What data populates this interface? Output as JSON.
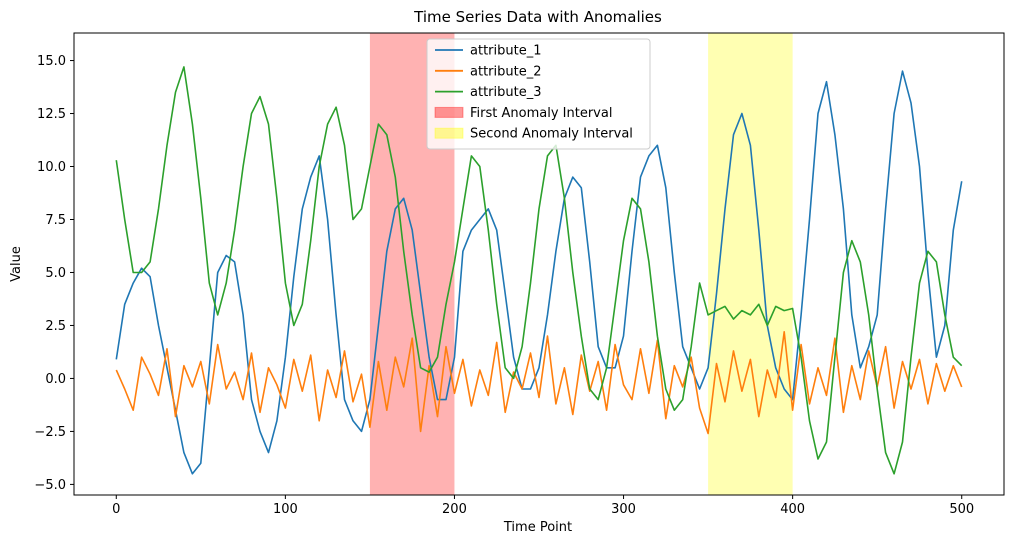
{
  "chart_data": {
    "type": "line",
    "title": "Time Series Data with Anomalies",
    "xlabel": "Time Point",
    "ylabel": "Value",
    "xlim": [
      -25,
      525
    ],
    "ylim": [
      -5.5,
      16.3
    ],
    "xticks": [
      0,
      100,
      200,
      300,
      400,
      500
    ],
    "yticks": [
      -5.0,
      -2.5,
      0.0,
      2.5,
      5.0,
      7.5,
      10.0,
      12.5,
      15.0
    ],
    "ytick_labels": [
      "−5.0",
      "−2.5",
      "0.0",
      "2.5",
      "5.0",
      "7.5",
      "10.0",
      "12.5",
      "15.0"
    ],
    "grid": false,
    "legend": "top-center",
    "spans": [
      {
        "name": "First Anomaly Interval",
        "x0": 150,
        "x1": 200,
        "color": "#ff0000",
        "alpha": 0.3
      },
      {
        "name": "Second Anomaly Interval",
        "x0": 350,
        "x1": 400,
        "color": "#ffff00",
        "alpha": 0.3
      }
    ],
    "series": [
      {
        "name": "attribute_1",
        "color": "#1f77b4",
        "x": [
          0,
          5,
          10,
          15,
          20,
          25,
          30,
          35,
          40,
          45,
          50,
          55,
          60,
          65,
          70,
          75,
          80,
          85,
          90,
          95,
          100,
          105,
          110,
          115,
          120,
          125,
          130,
          135,
          140,
          145,
          150,
          155,
          160,
          165,
          170,
          175,
          180,
          185,
          190,
          195,
          200,
          205,
          210,
          215,
          220,
          225,
          230,
          235,
          240,
          245,
          250,
          255,
          260,
          265,
          270,
          275,
          280,
          285,
          290,
          295,
          300,
          305,
          310,
          315,
          320,
          325,
          330,
          335,
          340,
          345,
          350,
          355,
          360,
          365,
          370,
          375,
          380,
          385,
          390,
          395,
          400,
          405,
          410,
          415,
          420,
          425,
          430,
          435,
          440,
          445,
          450,
          455,
          460,
          465,
          470,
          475,
          480,
          485,
          490,
          495,
          500
        ],
        "values": [
          0.9,
          3.5,
          4.5,
          5.2,
          4.8,
          2.5,
          0.5,
          -1.5,
          -3.5,
          -4.5,
          -4.0,
          0.5,
          5.0,
          5.8,
          5.5,
          3.0,
          -1.0,
          -2.5,
          -3.5,
          -2.0,
          1.0,
          4.8,
          8.0,
          9.5,
          10.5,
          7.5,
          3.0,
          -1.0,
          -2.0,
          -2.5,
          -1.0,
          2.5,
          6.0,
          8.0,
          8.5,
          7.0,
          4.0,
          1.0,
          -1.0,
          -1.0,
          1.0,
          6.0,
          7.0,
          7.5,
          8.0,
          7.0,
          4.0,
          1.0,
          -0.5,
          -0.5,
          0.5,
          3.0,
          6.0,
          8.5,
          9.5,
          9.0,
          5.5,
          1.5,
          0.5,
          0.5,
          2.0,
          6.0,
          9.5,
          10.5,
          11.0,
          9.0,
          5.0,
          1.5,
          0.5,
          -0.5,
          0.5,
          4.0,
          8.0,
          11.5,
          12.5,
          11.0,
          7.0,
          2.5,
          0.5,
          -0.5,
          -1.0,
          3.0,
          7.5,
          12.5,
          14.0,
          11.5,
          8.0,
          3.0,
          0.5,
          1.5,
          3.0,
          8.0,
          12.5,
          14.5,
          13.0,
          10.0,
          5.0,
          1.0,
          2.5,
          7.0,
          9.3
        ]
      },
      {
        "name": "attribute_2",
        "color": "#ff7f0e",
        "x": [
          0,
          5,
          10,
          15,
          20,
          25,
          30,
          35,
          40,
          45,
          50,
          55,
          60,
          65,
          70,
          75,
          80,
          85,
          90,
          95,
          100,
          105,
          110,
          115,
          120,
          125,
          130,
          135,
          140,
          145,
          150,
          155,
          160,
          165,
          170,
          175,
          180,
          185,
          190,
          195,
          200,
          205,
          210,
          215,
          220,
          225,
          230,
          235,
          240,
          245,
          250,
          255,
          260,
          265,
          270,
          275,
          280,
          285,
          290,
          295,
          300,
          305,
          310,
          315,
          320,
          325,
          330,
          335,
          340,
          345,
          350,
          355,
          360,
          365,
          370,
          375,
          380,
          385,
          390,
          395,
          400,
          405,
          410,
          415,
          420,
          425,
          430,
          435,
          440,
          445,
          450,
          455,
          460,
          465,
          470,
          475,
          480,
          485,
          490,
          495,
          500
        ],
        "values": [
          0.4,
          -0.5,
          -1.5,
          1.0,
          0.2,
          -0.8,
          1.4,
          -1.8,
          0.6,
          -0.4,
          0.8,
          -1.2,
          1.6,
          -0.5,
          0.3,
          -1.0,
          1.2,
          -1.6,
          0.5,
          -0.3,
          -1.4,
          0.9,
          -0.6,
          1.1,
          -2.0,
          0.4,
          -0.9,
          1.3,
          -1.1,
          0.2,
          -2.3,
          0.8,
          -1.5,
          1.0,
          -0.4,
          1.9,
          -2.5,
          0.6,
          -1.8,
          1.5,
          -0.7,
          0.9,
          -1.3,
          0.4,
          -0.8,
          1.7,
          -1.6,
          0.3,
          -0.5,
          1.2,
          -0.9,
          2.0,
          -1.2,
          0.5,
          -1.7,
          1.1,
          -0.6,
          0.8,
          -1.5,
          1.6,
          -0.3,
          -1.0,
          1.4,
          -0.7,
          1.8,
          -1.9,
          0.6,
          -0.4,
          1.0,
          -1.4,
          -2.6,
          0.7,
          -1.1,
          1.3,
          -0.6,
          0.9,
          -1.8,
          0.4,
          -0.9,
          2.2,
          -1.5,
          1.6,
          -1.2,
          0.5,
          -0.8,
          1.9,
          -1.6,
          0.6,
          -1.0,
          1.3,
          -0.4,
          1.5,
          -1.4,
          0.8,
          -0.5,
          0.9,
          -1.2,
          0.7,
          -0.6,
          0.6,
          -0.4
        ]
      },
      {
        "name": "attribute_3",
        "color": "#2ca02c",
        "x": [
          0,
          5,
          10,
          15,
          20,
          25,
          30,
          35,
          40,
          45,
          50,
          55,
          60,
          65,
          70,
          75,
          80,
          85,
          90,
          95,
          100,
          105,
          110,
          115,
          120,
          125,
          130,
          135,
          140,
          145,
          150,
          155,
          160,
          165,
          170,
          175,
          180,
          185,
          190,
          195,
          200,
          205,
          210,
          215,
          220,
          225,
          230,
          235,
          240,
          245,
          250,
          255,
          260,
          265,
          270,
          275,
          280,
          285,
          290,
          295,
          300,
          305,
          310,
          315,
          320,
          325,
          330,
          335,
          340,
          345,
          350,
          355,
          360,
          365,
          370,
          375,
          380,
          385,
          390,
          395,
          400,
          405,
          410,
          415,
          420,
          425,
          430,
          435,
          440,
          445,
          450,
          455,
          460,
          465,
          470,
          475,
          480,
          485,
          490,
          495,
          500
        ],
        "values": [
          10.3,
          7.5,
          5.0,
          5.0,
          5.5,
          8.0,
          11.0,
          13.5,
          14.7,
          12.0,
          8.5,
          4.5,
          3.0,
          4.5,
          7.0,
          10.0,
          12.5,
          13.3,
          12.0,
          8.5,
          4.5,
          2.5,
          3.5,
          6.5,
          10.0,
          12.0,
          12.8,
          11.0,
          7.5,
          8.0,
          10.0,
          12.0,
          11.5,
          9.5,
          6.0,
          3.0,
          0.5,
          0.3,
          1.0,
          3.5,
          5.5,
          8.0,
          10.5,
          10.0,
          7.0,
          3.5,
          0.5,
          0.0,
          1.5,
          4.5,
          8.0,
          10.5,
          11.0,
          8.5,
          5.0,
          2.0,
          -0.5,
          -1.0,
          0.5,
          3.5,
          6.5,
          8.5,
          8.0,
          5.5,
          2.0,
          -0.5,
          -1.5,
          -1.0,
          1.5,
          4.5,
          3.0,
          3.2,
          3.4,
          2.8,
          3.2,
          3.0,
          3.5,
          2.5,
          3.4,
          3.2,
          3.3,
          1.0,
          -2.0,
          -3.8,
          -3.0,
          1.0,
          5.0,
          6.5,
          5.5,
          3.0,
          -0.5,
          -3.5,
          -4.5,
          -3.0,
          1.0,
          4.5,
          6.0,
          5.5,
          3.0,
          1.0,
          0.6
        ]
      }
    ]
  }
}
